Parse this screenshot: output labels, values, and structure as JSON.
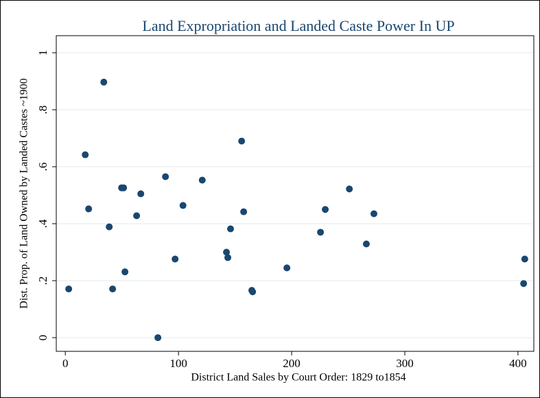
{
  "chart_data": {
    "type": "scatter",
    "title": "Land Expropriation and Landed Caste Power In UP",
    "x_label": "District Land Sales by Court Order: 1829 to1854",
    "y_label": "Dist. Prop. of Land Owned by Landed Castes ~1900",
    "color": "#1a476f",
    "x": [
      3,
      17.6,
      20.6,
      34,
      38.8,
      41.8,
      49.7,
      51.5,
      52.7,
      63,
      66.7,
      81.8,
      88.5,
      97,
      104,
      121,
      142.4,
      143.6,
      146,
      155.8,
      157.6,
      164.8,
      165.5,
      195.8,
      225.5,
      229.7,
      251,
      266,
      272.7,
      405,
      406
    ],
    "y": [
      0.171,
      0.642,
      0.452,
      0.897,
      0.389,
      0.171,
      0.526,
      0.526,
      0.231,
      0.428,
      0.505,
      0,
      0.565,
      0.276,
      0.464,
      0.553,
      0.3,
      0.281,
      0.382,
      0.69,
      0.442,
      0.166,
      0.161,
      0.245,
      0.37,
      0.45,
      0.522,
      0.329,
      0.435,
      0.19,
      0.276
    ],
    "xlim": [
      -8,
      414
    ],
    "ylim": [
      -0.048,
      1.06
    ],
    "xticks": [
      0,
      100,
      200,
      300,
      400
    ],
    "yticks": [
      0,
      {
        "value": 0.2,
        "label": ".2"
      },
      {
        "value": 0.4,
        "label": ".4"
      },
      {
        "value": 0.6,
        "label": ".6"
      },
      {
        "value": 0.8,
        "label": ".8"
      },
      1
    ],
    "grid": true
  }
}
